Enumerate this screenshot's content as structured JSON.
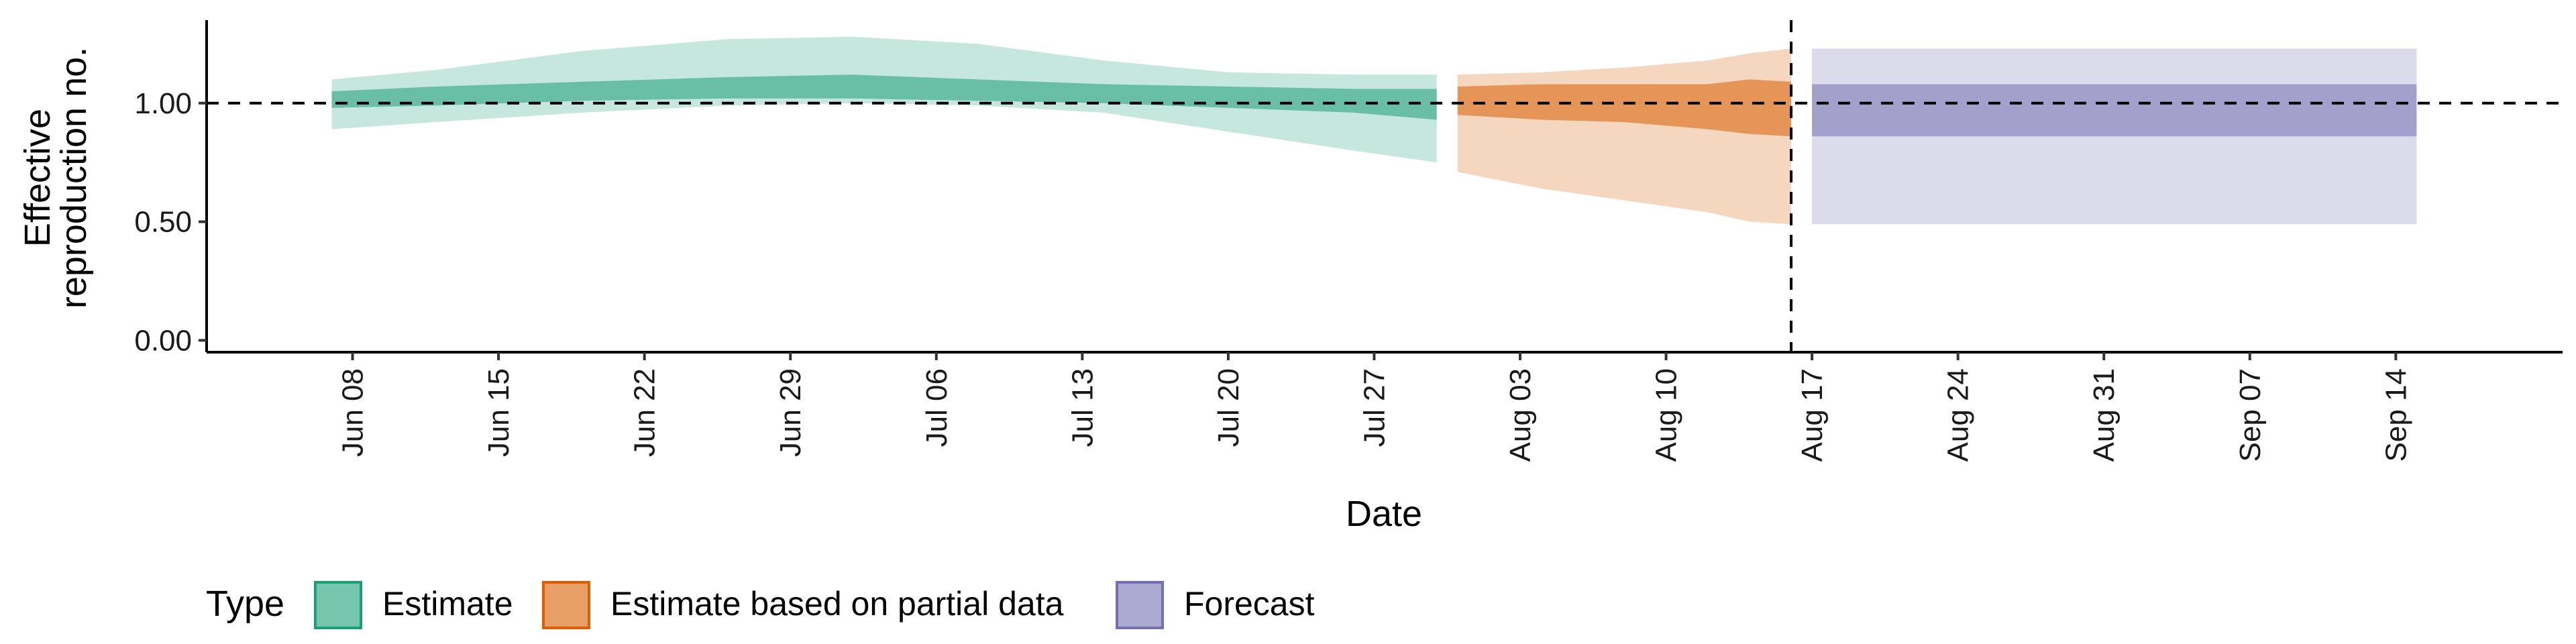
{
  "chart_data": {
    "type": "area",
    "title": "",
    "xlabel": "Date",
    "ylabel_lines": [
      "Effective",
      "reproduction no."
    ],
    "xlim": [
      "2020-06-01",
      "2020-09-22"
    ],
    "ylim": [
      -0.05,
      1.35
    ],
    "y_ticks": [
      0.0,
      0.5,
      1.0
    ],
    "y_tick_labels": [
      "0.00",
      "0.50",
      "1.00"
    ],
    "x_ticks": [
      "2020-06-08",
      "2020-06-15",
      "2020-06-22",
      "2020-06-29",
      "2020-07-06",
      "2020-07-13",
      "2020-07-20",
      "2020-07-27",
      "2020-08-03",
      "2020-08-10",
      "2020-08-17",
      "2020-08-24",
      "2020-08-31",
      "2020-09-07",
      "2020-09-14"
    ],
    "x_tick_labels": [
      "Jun 08",
      "Jun 15",
      "Jun 22",
      "Jun 29",
      "Jul 06",
      "Jul 13",
      "Jul 20",
      "Jul 27",
      "Aug 03",
      "Aug 10",
      "Aug 17",
      "Aug 24",
      "Aug 31",
      "Sep 07",
      "Sep 14"
    ],
    "reference_line_y": 1.0,
    "forecast_start_date": "2020-08-16",
    "grid": false,
    "legend": {
      "title": "Type",
      "placement": "bottom",
      "entries": [
        "Estimate",
        "Estimate based on partial data",
        "Forecast"
      ]
    },
    "colors": {
      "Estimate": "#1b9e77",
      "Estimate based on partial data": "#d95f02",
      "Forecast": "#7570b3"
    },
    "series": [
      {
        "name": "Estimate",
        "x": [
          "2020-06-07",
          "2020-06-12",
          "2020-06-19",
          "2020-06-26",
          "2020-07-02",
          "2020-07-08",
          "2020-07-14",
          "2020-07-20",
          "2020-07-26",
          "2020-07-30"
        ],
        "lower90": [
          0.89,
          0.92,
          0.96,
          0.99,
          1.0,
          0.99,
          0.96,
          0.88,
          0.8,
          0.75
        ],
        "upper90": [
          1.1,
          1.14,
          1.22,
          1.27,
          1.28,
          1.25,
          1.18,
          1.13,
          1.12,
          1.12
        ],
        "lower50": [
          0.98,
          0.99,
          1.01,
          1.02,
          1.02,
          1.01,
          1.0,
          0.98,
          0.96,
          0.93
        ],
        "upper50": [
          1.05,
          1.07,
          1.09,
          1.11,
          1.12,
          1.1,
          1.08,
          1.07,
          1.06,
          1.06
        ]
      },
      {
        "name": "Estimate based on partial data",
        "x": [
          "2020-07-31",
          "2020-08-04",
          "2020-08-08",
          "2020-08-12",
          "2020-08-14",
          "2020-08-16"
        ],
        "lower90": [
          0.71,
          0.64,
          0.59,
          0.54,
          0.5,
          0.49
        ],
        "upper90": [
          1.12,
          1.13,
          1.15,
          1.18,
          1.21,
          1.23
        ],
        "lower50": [
          0.95,
          0.93,
          0.92,
          0.89,
          0.87,
          0.86
        ],
        "upper50": [
          1.07,
          1.08,
          1.08,
          1.08,
          1.1,
          1.09
        ]
      },
      {
        "name": "Forecast",
        "x": [
          "2020-08-17",
          "2020-09-15"
        ],
        "lower90": [
          0.49,
          0.49
        ],
        "upper90": [
          1.23,
          1.23
        ],
        "lower50": [
          0.86,
          0.86
        ],
        "upper50": [
          1.08,
          1.08
        ]
      }
    ]
  }
}
